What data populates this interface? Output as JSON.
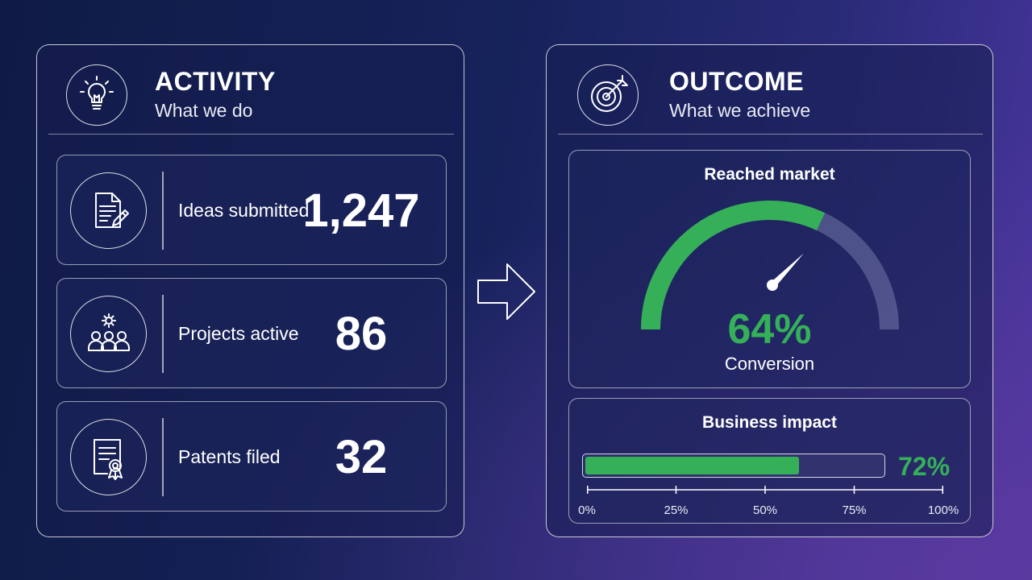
{
  "activity": {
    "title": "ACTIVITY",
    "subtitle": "What we do",
    "header_icon": "lightbulb-icon",
    "metrics": [
      {
        "icon": "document-edit-icon",
        "label": "Ideas submitted",
        "value": "1,247"
      },
      {
        "icon": "team-gear-icon",
        "label": "Projects active",
        "value": "86"
      },
      {
        "icon": "certificate-icon",
        "label": "Patents filed",
        "value": "32"
      }
    ]
  },
  "arrow_icon": "arrow-right-icon",
  "outcome": {
    "title": "OUTCOME",
    "subtitle": "What we achieve",
    "header_icon": "target-icon",
    "gauge": {
      "title": "Reached market",
      "value_text": "64%",
      "value": 0.64,
      "label": "Conversion",
      "fill_color": "#35b059"
    },
    "progress": {
      "title": "Business impact",
      "value_text": "72%",
      "value": 0.72,
      "fill_color": "#35b059",
      "ticks": [
        "0%",
        "25%",
        "50%",
        "75%",
        "100%"
      ]
    }
  },
  "colors": {
    "accent_green": "#35b059",
    "background_dark": "#0f1b45",
    "background_purple": "#4a36a0"
  }
}
